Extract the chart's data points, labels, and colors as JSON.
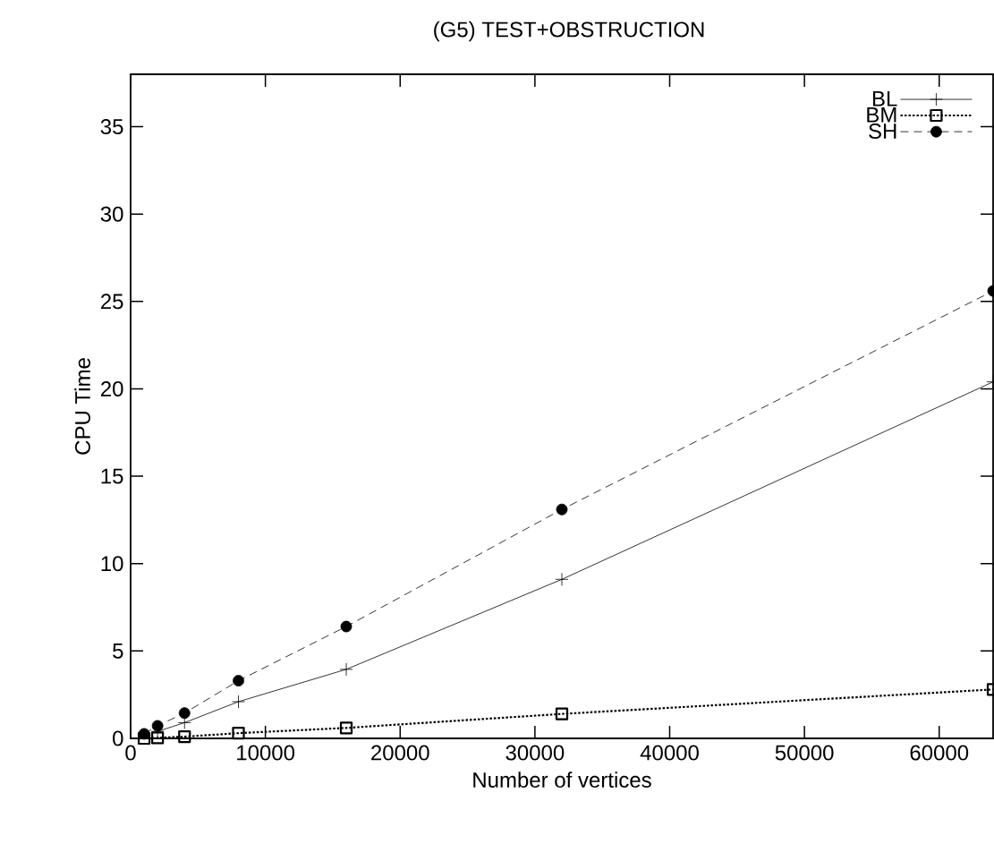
{
  "chart_data": {
    "type": "line",
    "title": "(G5) TEST+OBSTRUCTION",
    "xlabel": "Number of vertices",
    "ylabel": "CPU Time",
    "x": [
      1000,
      2000,
      4000,
      8000,
      16000,
      32000,
      64000
    ],
    "series": [
      {
        "name": "BL",
        "color": "#000000",
        "marker": "cross",
        "line_style": "solid",
        "values": [
          null,
          0.4,
          0.9,
          2.1,
          3.95,
          9.1,
          20.4
        ]
      },
      {
        "name": "BM",
        "color": "#000000",
        "marker": "square",
        "line_style": "dotted",
        "values": [
          0.0,
          0.03,
          0.1,
          0.3,
          0.6,
          1.4,
          2.8
        ]
      },
      {
        "name": "SH",
        "color": "#000000",
        "marker": "circle",
        "line_style": "dashed",
        "values": [
          0.26,
          0.72,
          1.45,
          3.3,
          6.4,
          13.1,
          25.6
        ]
      }
    ],
    "xlim": [
      0,
      64000
    ],
    "ylim": [
      0,
      38
    ],
    "xticks": [
      0,
      10000,
      20000,
      30000,
      40000,
      50000,
      60000
    ],
    "yticks": [
      0,
      5,
      10,
      15,
      20,
      25,
      30,
      35
    ],
    "grid": false,
    "legend": "top right"
  }
}
